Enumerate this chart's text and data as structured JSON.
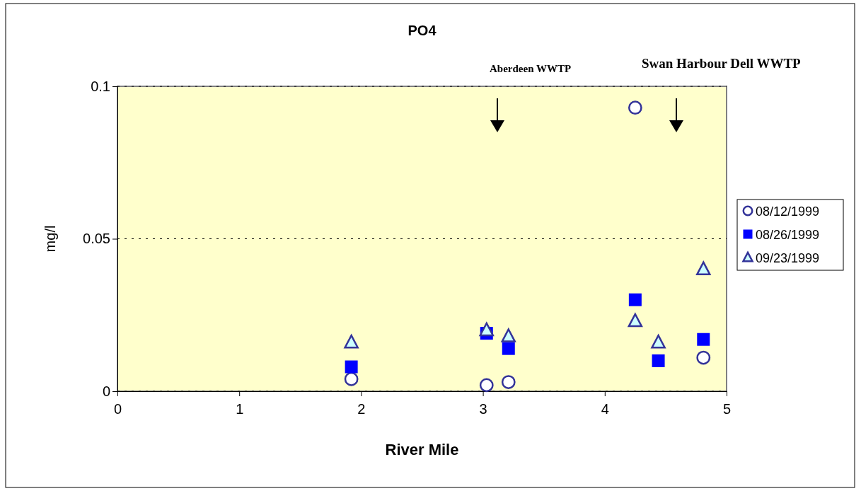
{
  "chart_data": {
    "type": "scatter",
    "title": "PO4",
    "xlabel": "River Mile",
    "ylabel": "mg/l",
    "xlim": [
      0,
      5
    ],
    "xticks": [
      0,
      1,
      2,
      3,
      4,
      5
    ],
    "ylim": [
      0,
      0.1
    ],
    "yticks": [
      0,
      0.05,
      0.1
    ],
    "grid": "y",
    "legend": "right",
    "annotations": [
      "Aberdeen WWTP",
      "Swan Harbour Dell WWTP"
    ],
    "series": [
      {
        "name": "08/12/1999",
        "color": "#333399",
        "marker": "circle",
        "x": [
          1.92,
          3.03,
          3.21,
          4.25,
          4.81
        ],
        "values": [
          0.004,
          0.002,
          0.003,
          0.093,
          0.011
        ]
      },
      {
        "name": "08/26/1999",
        "color": "#0000ff",
        "marker": "square",
        "x": [
          1.92,
          3.03,
          3.21,
          4.25,
          4.44,
          4.81
        ],
        "values": [
          0.008,
          0.019,
          0.014,
          0.03,
          0.01,
          0.017
        ]
      },
      {
        "name": "09/23/1999",
        "color": "#333399",
        "marker": "triangle",
        "x": [
          1.92,
          3.03,
          3.21,
          4.25,
          4.44,
          4.81
        ],
        "values": [
          0.016,
          0.02,
          0.018,
          0.023,
          0.016,
          0.04
        ]
      }
    ]
  }
}
